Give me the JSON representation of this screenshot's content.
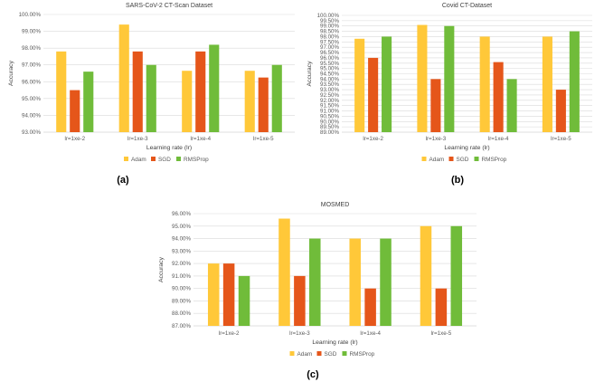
{
  "colors": {
    "Adam": "#FFC839",
    "SGD": "#E5561A",
    "RMSProp": "#70BC3A",
    "grid": "#D9D9D9",
    "axis": "#BFBFBF"
  },
  "chart_data": [
    {
      "type": "bar",
      "title": "SARS-CoV-2 CT-Scan Dataset",
      "panel_label": "(a)",
      "xlabel": "Learning rate (lr)",
      "ylabel": "Accuracy",
      "categories": [
        "lr=1xe-2",
        "lr=1xe-3",
        "lr=1xe-4",
        "lr=1xe-5"
      ],
      "ylim": [
        93,
        100
      ],
      "ytick_step": 1,
      "ytick_labels": [
        "93.00%",
        "94.00%",
        "95.00%",
        "96.00%",
        "97.00%",
        "98.00%",
        "99.00%",
        "100.00%"
      ],
      "series": [
        {
          "name": "Adam",
          "values": [
            97.8,
            99.4,
            96.65,
            96.65
          ]
        },
        {
          "name": "SGD",
          "values": [
            95.5,
            97.8,
            97.8,
            96.25
          ]
        },
        {
          "name": "RMSProp",
          "values": [
            96.6,
            97.0,
            98.2,
            97.0
          ]
        }
      ],
      "legend": [
        "Adam",
        "SGD",
        "RMSProp"
      ]
    },
    {
      "type": "bar",
      "title": "Covid CT-Dataset",
      "panel_label": "(b)",
      "xlabel": "Learning rate (lr)",
      "ylabel": "Accuracy",
      "categories": [
        "lr=1xe-2",
        "lr=1xe-3",
        "lr=1xe-4",
        "lr=1xe-5"
      ],
      "ylim": [
        89,
        100
      ],
      "ytick_step": 0.5,
      "ytick_labels": [
        "89.00%",
        "89.50%",
        "90.00%",
        "90.50%",
        "91.00%",
        "91.50%",
        "92.00%",
        "92.50%",
        "93.00%",
        "93.50%",
        "94.00%",
        "94.50%",
        "95.00%",
        "95.50%",
        "96.00%",
        "96.50%",
        "97.00%",
        "97.50%",
        "98.00%",
        "98.50%",
        "99.00%",
        "99.50%",
        "100.00%"
      ],
      "series": [
        {
          "name": "Adam",
          "values": [
            97.8,
            99.1,
            98.0,
            98.0
          ]
        },
        {
          "name": "SGD",
          "values": [
            96.0,
            94.0,
            95.6,
            93.0
          ]
        },
        {
          "name": "RMSProp",
          "values": [
            98.0,
            99.0,
            94.0,
            98.5
          ]
        }
      ],
      "legend": [
        "Adam",
        "SGD",
        "RMSProp"
      ]
    },
    {
      "type": "bar",
      "title": "MOSMED",
      "panel_label": "(c)",
      "xlabel": "Learning rate (lr)",
      "ylabel": "Accuracy",
      "categories": [
        "lr=1xe-2",
        "lr=1xe-3",
        "lr=1xe-4",
        "lr=1xe-5"
      ],
      "ylim": [
        87,
        96
      ],
      "ytick_step": 1,
      "ytick_labels": [
        "87.00%",
        "88.00%",
        "89.00%",
        "90.00%",
        "91.00%",
        "92.00%",
        "93.00%",
        "94.00%",
        "95.00%",
        "96.00%"
      ],
      "series": [
        {
          "name": "Adam",
          "values": [
            92.0,
            95.6,
            94.0,
            95.0
          ]
        },
        {
          "name": "SGD",
          "values": [
            92.0,
            91.0,
            90.0,
            90.0
          ]
        },
        {
          "name": "RMSProp",
          "values": [
            91.0,
            94.0,
            94.0,
            95.0
          ]
        }
      ],
      "legend": [
        "Adam",
        "SGD",
        "RMSProp"
      ]
    }
  ]
}
